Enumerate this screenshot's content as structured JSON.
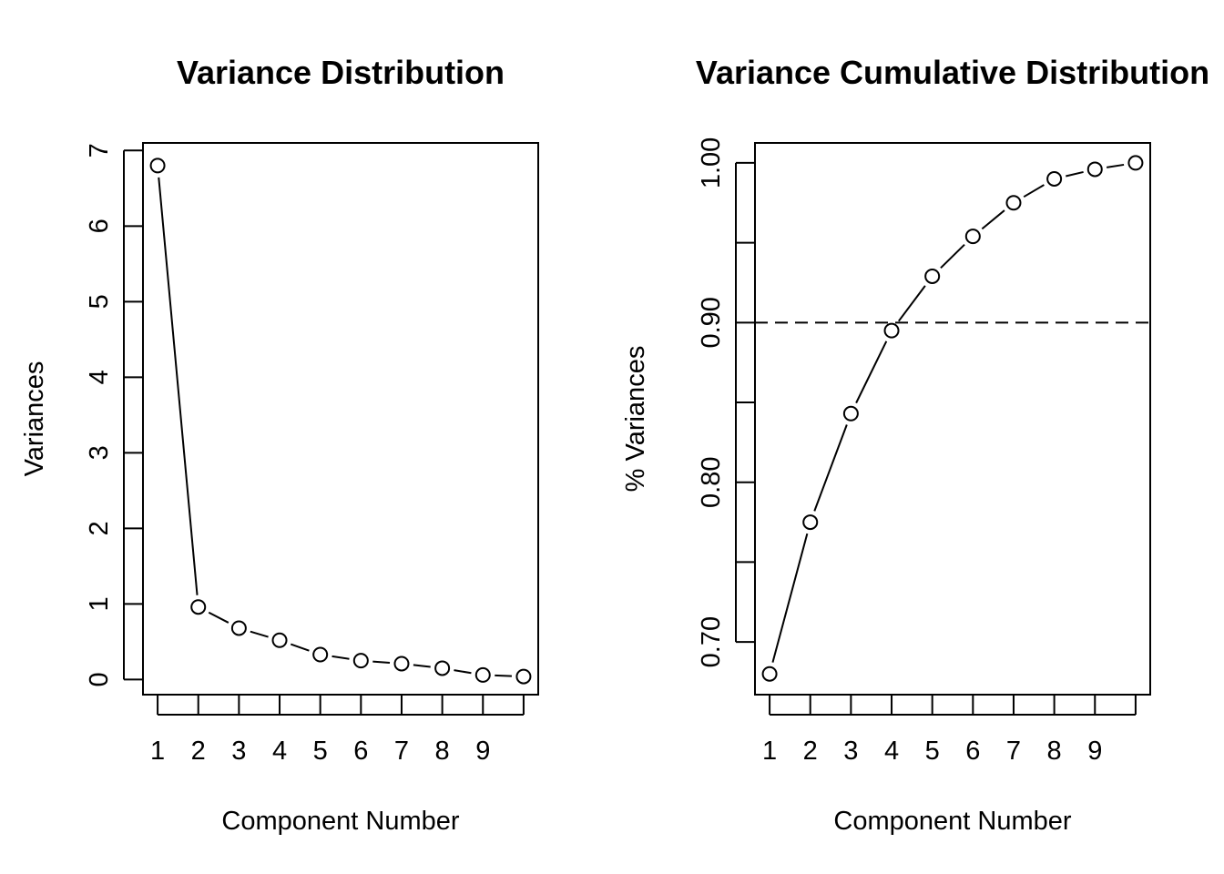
{
  "chart_data": [
    {
      "type": "line",
      "title": "Variance Distribution",
      "xlabel": "Component Number",
      "ylabel": "Variances",
      "x": [
        1,
        2,
        3,
        4,
        5,
        6,
        7,
        8,
        9,
        10
      ],
      "x_tick_labels": [
        "1",
        "2",
        "3",
        "4",
        "5",
        "6",
        "7",
        "8",
        "9"
      ],
      "y_ticks": [
        "0",
        "1",
        "2",
        "3",
        "4",
        "5",
        "6",
        "7"
      ],
      "ylim": [
        -0.2,
        7.1
      ],
      "xlim": [
        0.64,
        10.36
      ],
      "markers": "open-circle",
      "series": [
        {
          "values": [
            6.8,
            0.96,
            0.68,
            0.52,
            0.33,
            0.25,
            0.21,
            0.15,
            0.06,
            0.04
          ]
        }
      ]
    },
    {
      "type": "line",
      "title": "Variance Cumulative Distribution",
      "xlabel": "Component Number",
      "ylabel": "% Variances",
      "x": [
        1,
        2,
        3,
        4,
        5,
        6,
        7,
        8,
        9,
        10
      ],
      "x_tick_labels": [
        "1",
        "2",
        "3",
        "4",
        "5",
        "6",
        "7",
        "8",
        "9"
      ],
      "y_ticks": [
        "0.70",
        "",
        "0.80",
        "",
        "0.90",
        "",
        "1.00"
      ],
      "y_tick_values": [
        0.7,
        0.75,
        0.8,
        0.85,
        0.9,
        0.95,
        1.0
      ],
      "ylim": [
        0.667,
        1.0125
      ],
      "xlim": [
        0.64,
        10.36
      ],
      "markers": "open-circle",
      "reference_line": {
        "y": 0.9,
        "style": "dashed"
      },
      "series": [
        {
          "values": [
            0.68,
            0.775,
            0.843,
            0.895,
            0.929,
            0.954,
            0.975,
            0.99,
            0.996,
            1.0
          ]
        }
      ]
    }
  ]
}
